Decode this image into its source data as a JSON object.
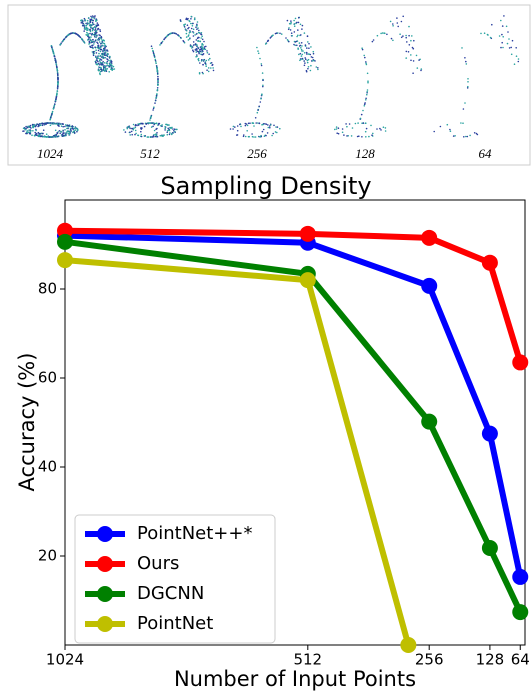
{
  "panel": {
    "labels": [
      "1024",
      "512",
      "256",
      "128",
      "64"
    ]
  },
  "chart_data": {
    "type": "line",
    "title": "Sampling Density",
    "x_label": "Number of Input Points",
    "y_label": "Accuracy (%)",
    "xlim": [
      1024,
      54
    ],
    "ylim": [
      0,
      100
    ],
    "xticks": [
      1024,
      512,
      256,
      128,
      64
    ],
    "yticks": [
      20,
      40,
      60,
      80
    ],
    "legend": "lower left",
    "series": [
      {
        "name": "PointNet++*",
        "color": "#0000ff",
        "x": [
          1024,
          512,
          256,
          128,
          64
        ],
        "values": [
          92.0,
          90.4,
          80.7,
          47.5,
          15.3
        ]
      },
      {
        "name": "Ours",
        "color": "#ff0000",
        "x": [
          1024,
          512,
          256,
          128,
          64
        ],
        "values": [
          93.1,
          92.4,
          91.5,
          85.9,
          63.5
        ]
      },
      {
        "name": "DGCNN",
        "color": "#008000",
        "x": [
          1024,
          512,
          256,
          128,
          64
        ],
        "values": [
          90.6,
          83.4,
          50.2,
          21.8,
          7.4
        ]
      },
      {
        "name": "PointNet",
        "color": "#bfbf00",
        "x": [
          1024,
          512,
          300
        ],
        "values": [
          86.5,
          82.0,
          0
        ]
      }
    ]
  }
}
